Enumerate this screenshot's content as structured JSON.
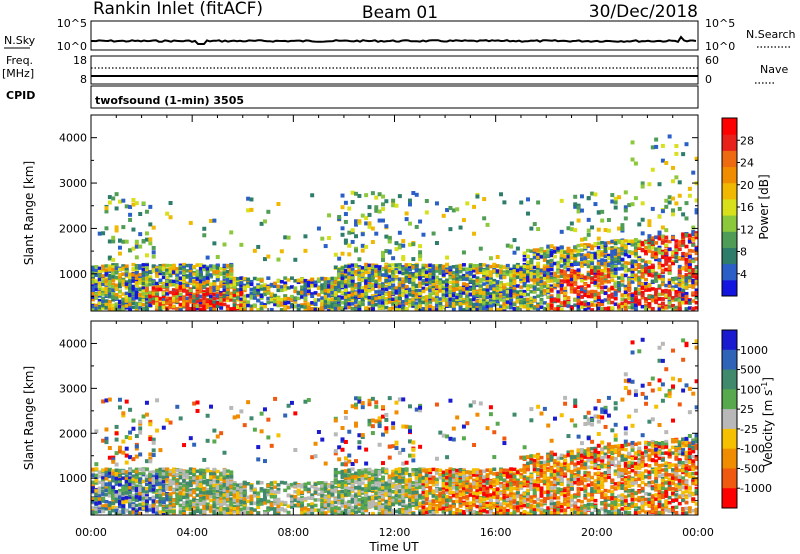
{
  "header": {
    "station": "Rankin Inlet (fitACF)",
    "beam": "Beam 01",
    "date": "30/Dec/2018"
  },
  "strip": {
    "nsky_label": "N.Sky",
    "nsky_ticks": [
      "10^5",
      "10^0"
    ],
    "nsearch_label": "N.Search",
    "freq_label_1": "Freq.",
    "freq_label_2": "[MHz]",
    "freq_ticks": [
      "18",
      "8"
    ],
    "nave_label": "Nave",
    "nave_ticks": [
      "60",
      "0"
    ],
    "cpid_label": "CPID",
    "cpid_text": "twofsound (1-min) 3505"
  },
  "chart_data": [
    {
      "type": "heatmap",
      "name_panel": "power",
      "ylabel": "Slant Range [km]",
      "xlabel": "Time UT",
      "x_ticks": [
        "00:00",
        "04:00",
        "08:00",
        "12:00",
        "16:00",
        "20:00",
        "00:00"
      ],
      "y_ticks": [
        1000,
        2000,
        3000,
        4000
      ],
      "ylim": [
        180,
        4500
      ],
      "xlim_hours": [
        0,
        24
      ],
      "colorbar": {
        "label": "Power [dB]",
        "ticks": [
          "4",
          "8",
          "12",
          "16",
          "20",
          "24",
          "28"
        ],
        "colors": [
          "#1515e0",
          "#2a5fc8",
          "#2e7d6a",
          "#4f9c57",
          "#8cc83c",
          "#d7e01a",
          "#f0b800",
          "#f08c00",
          "#ee6a10",
          "#e8221b",
          "#ff0000"
        ]
      }
    },
    {
      "type": "heatmap",
      "name_panel": "velocity",
      "ylabel": "Slant Range [km]",
      "xlabel": "Time UT",
      "x_ticks": [
        "00:00",
        "04:00",
        "08:00",
        "12:00",
        "16:00",
        "20:00",
        "00:00"
      ],
      "y_ticks": [
        1000,
        2000,
        3000,
        4000
      ],
      "ylim": [
        180,
        4500
      ],
      "xlim_hours": [
        0,
        24
      ],
      "colorbar": {
        "label": "Velocity [m s^-1]",
        "ticks": [
          "1000",
          "500",
          "100",
          "25",
          "-25",
          "-100",
          "-500",
          "-1000"
        ],
        "colors": [
          "#1a1ad0",
          "#2e63b8",
          "#3f8a6d",
          "#58a84e",
          "#b8b8b8",
          "#f5c000",
          "#f08c00",
          "#ef5a10",
          "#ff0000"
        ]
      }
    }
  ]
}
